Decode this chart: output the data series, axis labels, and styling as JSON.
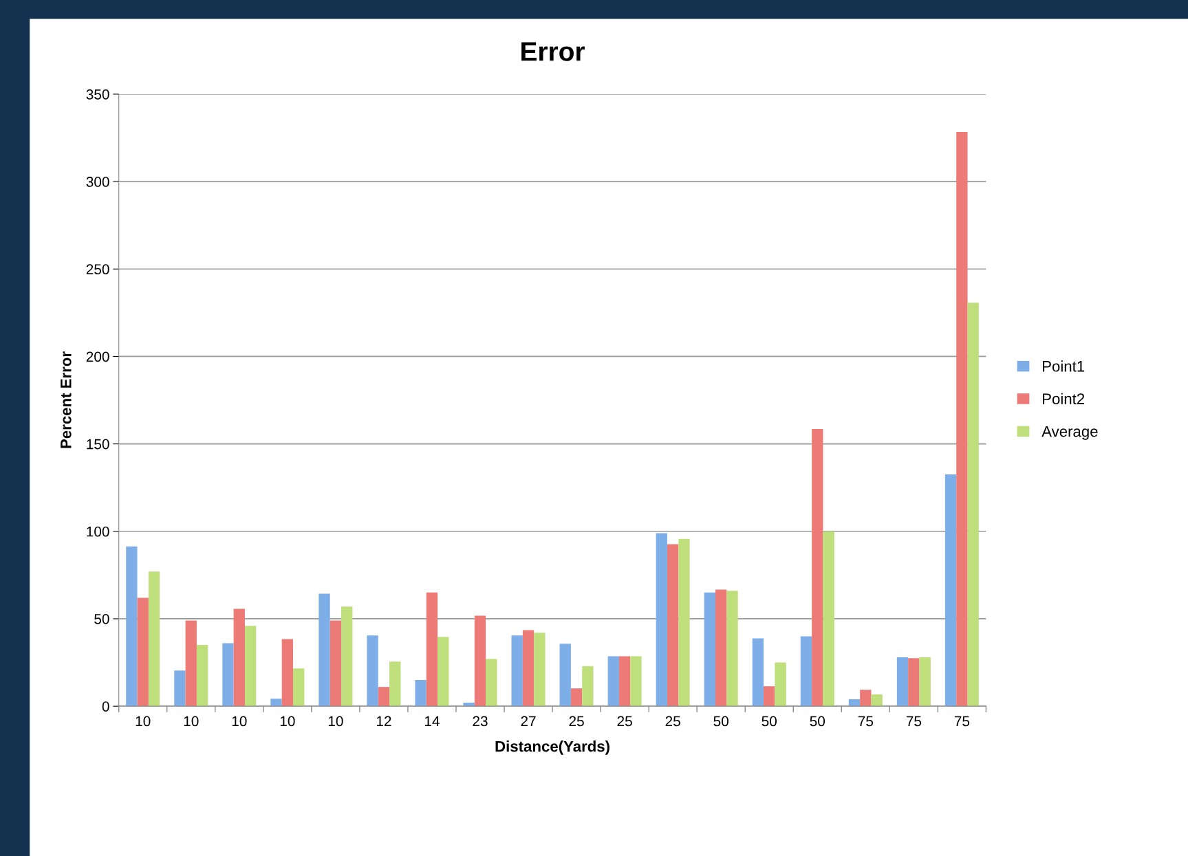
{
  "chart_data": {
    "type": "bar",
    "title": "Error",
    "xlabel": "Distance(Yards)",
    "ylabel": "Percent Error",
    "categories": [
      "10",
      "10",
      "10",
      "10",
      "10",
      "12",
      "14",
      "23",
      "27",
      "25",
      "25",
      "25",
      "50",
      "50",
      "50",
      "75",
      "75",
      "75"
    ],
    "series": [
      {
        "name": "Point1",
        "color": "#7eaee8",
        "values": [
          91.4,
          20.4,
          36,
          4.3,
          64.3,
          40.4,
          15,
          2,
          40.4,
          35.7,
          28.6,
          98.9,
          65,
          38.8,
          40,
          4,
          28,
          132.6
        ]
      },
      {
        "name": "Point2",
        "color": "#ec7b77",
        "values": [
          62,
          49,
          55.7,
          38.4,
          49,
          11,
          65,
          51.8,
          43.5,
          10.2,
          28.6,
          92.6,
          66.7,
          11.4,
          158.5,
          9.4,
          27.5,
          328.4
        ]
      },
      {
        "name": "Average",
        "color": "#bedf7c",
        "values": [
          77,
          35,
          46,
          21.6,
          57,
          25.5,
          39.6,
          27,
          42,
          23,
          28.6,
          95.7,
          66,
          25,
          100,
          6.7,
          28,
          230.7
        ]
      }
    ],
    "ylim": [
      0,
      350
    ],
    "yticks": [
      0,
      50,
      100,
      150,
      200,
      250,
      300,
      350
    ],
    "grid": "y",
    "legend": "right"
  }
}
